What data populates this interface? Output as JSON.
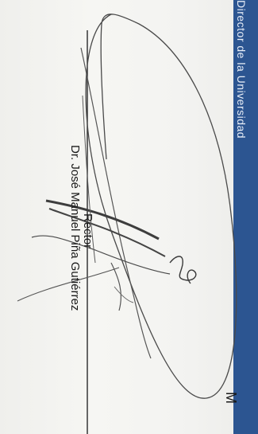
{
  "document": {
    "banner_text": "Director de la Universidad",
    "signatory_name": "Dr. José Manuel Piña Gutiérrez",
    "signatory_title": "Rector",
    "corner_letter": "M"
  },
  "colors": {
    "banner": "#2c5591",
    "ink": "#3a3a3a",
    "rule": "#2a2a2a"
  }
}
